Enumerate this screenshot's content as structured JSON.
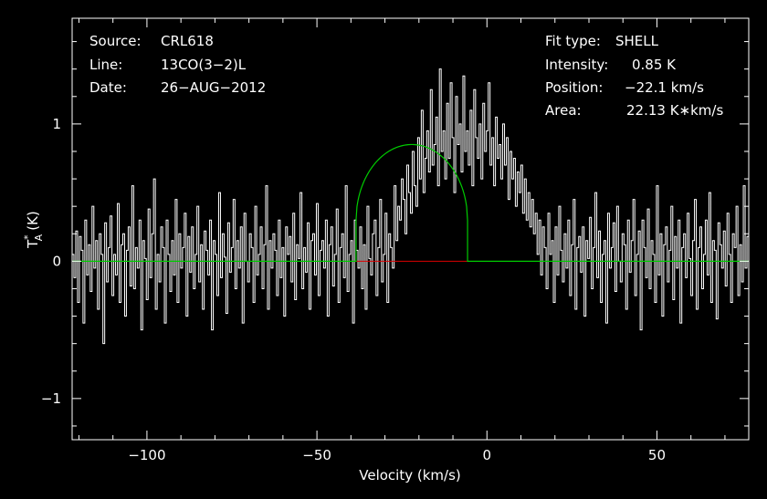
{
  "chart_data": {
    "type": "line",
    "xlabel": "Velocity (km/s)",
    "ylabel_main": "T",
    "ylabel_sup": "*",
    "ylabel_sub": "A",
    "ylabel_unit": "(K)",
    "xlim": [
      -122,
      77
    ],
    "ylim": [
      -1.3,
      1.77
    ],
    "xticks": [
      -100,
      -50,
      0,
      50
    ],
    "xtick_labels": [
      "−100",
      "−50",
      "0",
      "50"
    ],
    "yticks": [
      -1,
      0,
      1
    ],
    "ytick_labels": [
      "−1",
      "0",
      "1"
    ],
    "grid": false,
    "colors": {
      "background": "#000000",
      "spectrum": "#ffffff",
      "fit": "#00cc00",
      "baseline_segment": "#dd0000",
      "frame": "#ffffff"
    },
    "info_left": [
      {
        "label": "Source:",
        "value": "CRL618"
      },
      {
        "label": "Line:",
        "value": "13CO(3−2)L"
      },
      {
        "label": "Date:",
        "value": "26−AUG−2012"
      }
    ],
    "info_right": [
      {
        "label": "Fit type:",
        "value": "SHELL"
      },
      {
        "label": "Intensity:",
        "value": "0.85 K"
      },
      {
        "label": "Position:",
        "value": "−22.1 km/s"
      },
      {
        "label": "Area:",
        "value": "22.13 K∗km/s"
      }
    ],
    "fit": {
      "center": -22.1,
      "peak": 0.85,
      "edges": [
        -38.5,
        -5.7
      ]
    },
    "baseline": {
      "y": 0,
      "window": [
        -38.5,
        -5.7
      ]
    },
    "series": [
      {
        "values": [
          0.05,
          -0.12,
          0.22,
          -0.3,
          0.18,
          0.08,
          -0.45,
          0.3,
          -0.1,
          0.12,
          -0.22,
          0.4,
          -0.05,
          0.15,
          -0.35,
          0.2,
          0.05,
          -0.6,
          0.28,
          -0.15,
          0.1,
          0.33,
          -0.25,
          0.05,
          -0.1,
          0.42,
          -0.3,
          0.12,
          0.2,
          -0.4,
          0.08,
          0.25,
          -0.18,
          0.55,
          -0.2,
          0.1,
          -0.05,
          0.3,
          -0.5,
          0.15,
          0.02,
          -0.28,
          0.38,
          -0.12,
          0.2,
          0.6,
          -0.35,
          0.05,
          -0.15,
          0.25,
          0.1,
          -0.45,
          0.3,
          0.05,
          -0.22,
          0.15,
          -0.1,
          0.45,
          -0.3,
          0.2,
          -0.05,
          0.1,
          0.35,
          -0.4,
          0.18,
          -0.08,
          0.25,
          -0.2,
          0.05,
          0.4,
          -0.15,
          0.12,
          -0.35,
          0.22,
          0.08,
          -0.1,
          0.3,
          -0.5,
          0.15,
          0.05,
          -0.25,
          0.5,
          -0.12,
          0.2,
          0.03,
          -0.38,
          0.28,
          -0.08,
          0.1,
          0.45,
          -0.2,
          0.15,
          -0.05,
          0.25,
          -0.45,
          0.35,
          0.0,
          -0.15,
          0.2,
          0.1,
          -0.3,
          0.4,
          -0.1,
          0.05,
          0.25,
          -0.2,
          0.12,
          0.55,
          -0.35,
          0.15,
          -0.05,
          0.2,
          0.08,
          -0.25,
          0.3,
          -0.12,
          0.1,
          -0.4,
          0.25,
          0.05,
          0.18,
          -0.15,
          0.35,
          -0.28,
          0.12,
          0.02,
          0.5,
          -0.2,
          0.1,
          -0.08,
          0.28,
          -0.35,
          0.15,
          0.2,
          -0.1,
          0.42,
          -0.25,
          0.08,
          0.15,
          -0.05,
          0.3,
          -0.4,
          0.12,
          0.25,
          -0.18,
          0.05,
          0.38,
          -0.3,
          0.1,
          0.2,
          -0.12,
          0.55,
          -0.22,
          0.05,
          0.15,
          -0.45,
          0.3,
          0.08,
          -0.05,
          0.25,
          -0.2,
          0.12,
          -0.35,
          0.4,
          0.02,
          -0.1,
          0.2,
          0.3,
          -0.25,
          0.1,
          0.45,
          -0.15,
          0.05,
          0.35,
          -0.3,
          0.2,
          0.1,
          -0.05,
          0.55,
          0.15,
          0.4,
          0.3,
          0.6,
          0.45,
          0.2,
          0.7,
          0.5,
          0.35,
          0.8,
          0.55,
          0.4,
          0.9,
          0.6,
          1.1,
          0.5,
          0.75,
          0.95,
          0.65,
          1.25,
          0.7,
          0.85,
          1.05,
          0.55,
          1.4,
          0.8,
          0.95,
          0.6,
          1.15,
          0.75,
          1.3,
          0.9,
          0.5,
          1.2,
          0.85,
          1.0,
          0.65,
          1.35,
          0.8,
          0.95,
          0.7,
          1.1,
          0.55,
          1.25,
          0.9,
          0.75,
          1.0,
          0.6,
          1.15,
          0.8,
          0.95,
          1.3,
          0.7,
          0.9,
          0.55,
          1.05,
          0.75,
          0.85,
          0.6,
          1.0,
          0.7,
          0.9,
          0.45,
          0.8,
          0.6,
          0.75,
          0.4,
          0.65,
          0.5,
          0.7,
          0.35,
          0.6,
          0.3,
          0.5,
          0.25,
          0.45,
          0.2,
          0.35,
          0.05,
          0.3,
          -0.1,
          0.25,
          0.1,
          -0.2,
          0.35,
          0.05,
          0.15,
          -0.3,
          0.25,
          -0.1,
          0.4,
          0.08,
          -0.15,
          0.2,
          -0.05,
          0.3,
          -0.25,
          0.12,
          0.45,
          -0.35,
          0.1,
          0.18,
          -0.08,
          0.25,
          -0.4,
          0.15,
          0.02,
          0.32,
          -0.2,
          0.1,
          0.5,
          -0.12,
          0.22,
          -0.3,
          0.05,
          0.15,
          -0.45,
          0.35,
          -0.05,
          0.1,
          0.28,
          -0.22,
          0.4,
          0.0,
          -0.15,
          0.2,
          0.12,
          -0.35,
          0.3,
          -0.08,
          0.15,
          0.45,
          -0.25,
          0.05,
          0.22,
          -0.5,
          0.3,
          0.1,
          -0.12,
          0.38,
          -0.2,
          0.15,
          0.05,
          -0.3,
          0.55,
          -0.1,
          0.2,
          -0.4,
          0.12,
          0.25,
          -0.15,
          0.08,
          0.4,
          -0.28,
          0.18,
          -0.05,
          0.3,
          -0.45,
          0.1,
          0.2,
          -0.12,
          0.35,
          0.02,
          -0.25,
          0.15,
          0.45,
          -0.35,
          0.1,
          0.25,
          -0.2,
          0.05,
          0.3,
          -0.1,
          0.5,
          -0.3,
          0.15,
          0.08,
          -0.42,
          0.28,
          0.12,
          -0.05,
          0.22,
          -0.18,
          0.35,
          0.05,
          -0.3,
          0.2,
          0.1,
          0.4,
          -0.25,
          0.12,
          -0.15,
          0.55,
          -0.05,
          0.18
        ]
      }
    ]
  }
}
